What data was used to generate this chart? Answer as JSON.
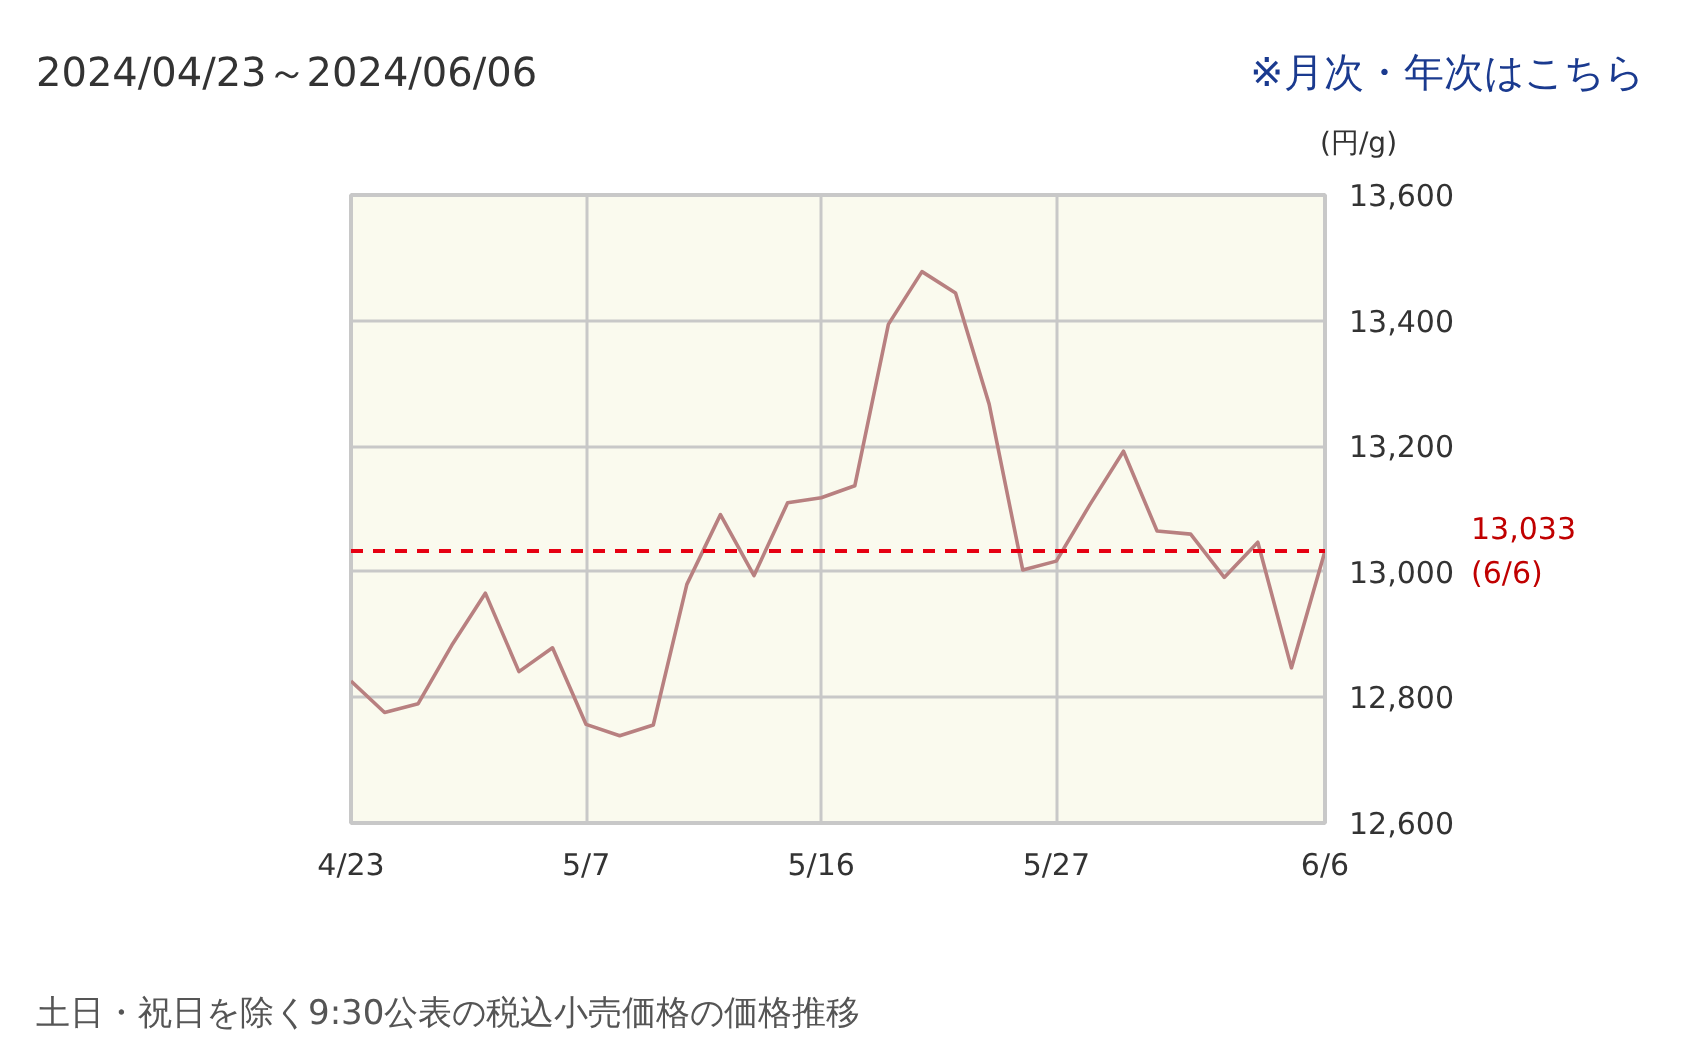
{
  "chart_data": {
    "type": "line",
    "title": "2024/04/23～2024/06/06",
    "ylabel": "(円/g)",
    "annotations": [
      "※月次・年次はこちら",
      "土日・祝日を除く9:30公表の税込小売価格の価格推移"
    ],
    "categories": [
      "4/23",
      null,
      null,
      null,
      null,
      null,
      null,
      "5/7",
      null,
      null,
      null,
      null,
      null,
      null,
      "5/16",
      null,
      null,
      null,
      null,
      null,
      null,
      "5/27",
      null,
      null,
      null,
      null,
      null,
      null,
      null,
      "6/6"
    ],
    "series": [
      {
        "color": "#b88080",
        "values": [
          12826,
          12776,
          12790,
          12883,
          12966,
          12841,
          12879,
          12757,
          12739,
          12756,
          12980,
          13091,
          12994,
          13110,
          13118,
          13137,
          13394,
          13478,
          13444,
          13267,
          13003,
          13017,
          13107,
          13192,
          13065,
          13060,
          12991,
          13047,
          12847,
          13033
        ]
      }
    ],
    "ylim": [
      12600,
      13600
    ],
    "yticks": [
      {
        "value": 12600,
        "label": "12,600"
      },
      {
        "value": 12800,
        "label": "12,800"
      },
      {
        "value": 13000,
        "label": "13,000"
      },
      {
        "value": 13200,
        "label": "13,200"
      },
      {
        "value": 13400,
        "label": "13,400"
      },
      {
        "value": 13600,
        "label": "13,600"
      }
    ],
    "ref_lines": [
      {
        "axis": "y",
        "value": 13033,
        "label": "13,033\n(6/6)",
        "color": "#e60012",
        "line_style": "dashed"
      }
    ],
    "grid": true,
    "marker": "none",
    "line_style": "solid"
  }
}
